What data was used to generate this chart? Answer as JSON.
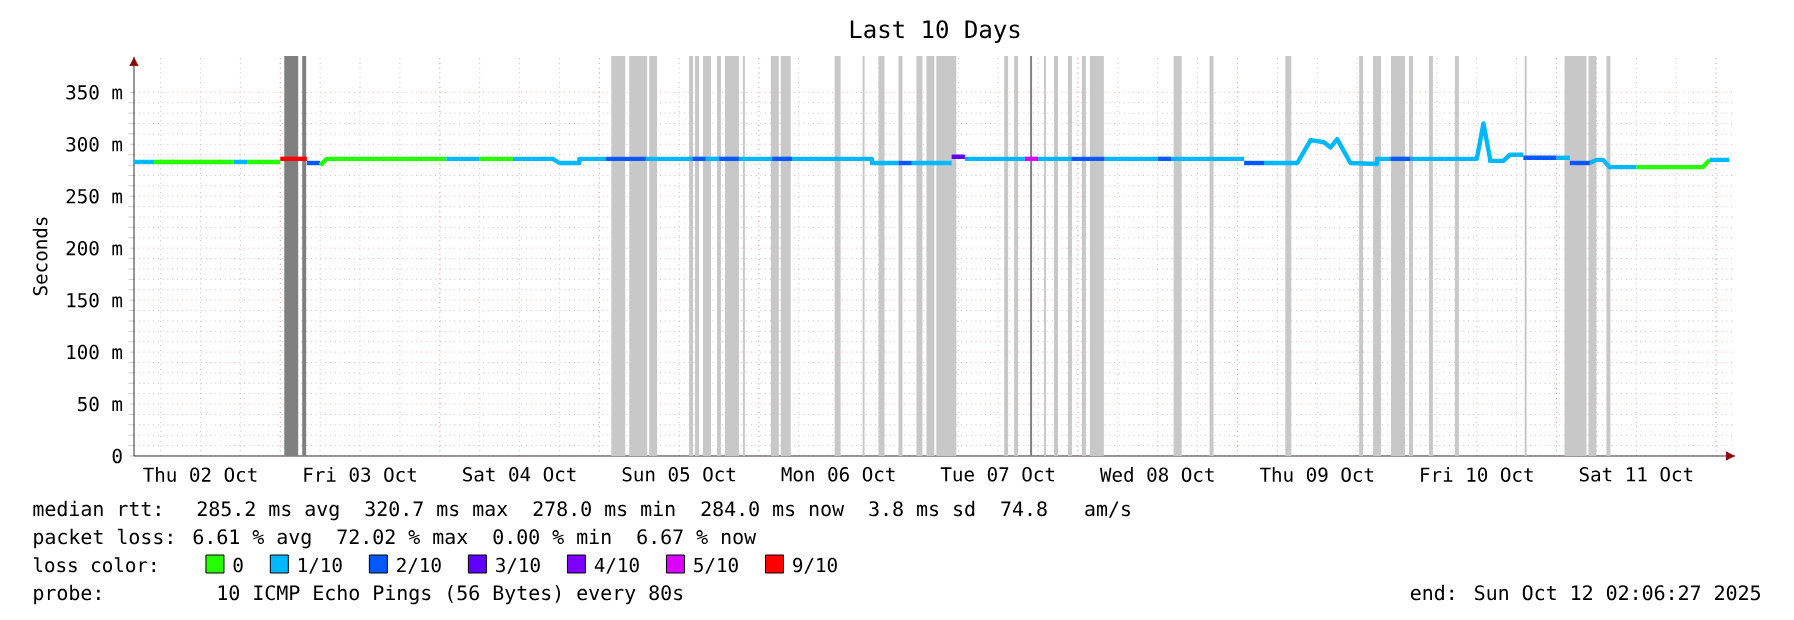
{
  "chart_data": {
    "type": "line",
    "title": "Last 10 Days",
    "ylabel": "Seconds",
    "legend_title": "loss color:",
    "legend": "bottom",
    "grid": true,
    "line_style": "solid",
    "xlim": [
      "2025-10-02T02:00",
      "2025-10-12T03:00"
    ],
    "xticks": [
      {
        "value": "2025-10-02T12:00",
        "label": "Thu 02 Oct"
      },
      {
        "value": "2025-10-03T12:00",
        "label": "Fri 03 Oct"
      },
      {
        "value": "2025-10-04T12:00",
        "label": "Sat 04 Oct"
      },
      {
        "value": "2025-10-05T12:00",
        "label": "Sun 05 Oct"
      },
      {
        "value": "2025-10-06T12:00",
        "label": "Mon 06 Oct"
      },
      {
        "value": "2025-10-07T12:00",
        "label": "Tue 07 Oct"
      },
      {
        "value": "2025-10-08T12:00",
        "label": "Wed 08 Oct"
      },
      {
        "value": "2025-10-09T12:00",
        "label": "Thu 09 Oct"
      },
      {
        "value": "2025-10-10T12:00",
        "label": "Fri 10 Oct"
      },
      {
        "value": "2025-10-11T12:00",
        "label": "Sat 11 Oct"
      },
      {
        "value": "2025-10-03T00:00",
        "label": null
      },
      {
        "value": "2025-10-04T00:00",
        "label": null
      },
      {
        "value": "2025-10-05T00:00",
        "label": null
      },
      {
        "value": "2025-10-06T00:00",
        "label": null
      },
      {
        "value": "2025-10-07T00:00",
        "label": null
      },
      {
        "value": "2025-10-08T00:00",
        "label": null
      },
      {
        "value": "2025-10-09T00:00",
        "label": null
      },
      {
        "value": "2025-10-10T00:00",
        "label": null
      },
      {
        "value": "2025-10-11T00:00",
        "label": null
      },
      {
        "value": "2025-10-12T00:00",
        "label": null
      }
    ],
    "ylim": [
      0,
      385
    ],
    "yticks": [
      0,
      {
        "value": 50,
        "label": "50 m"
      },
      {
        "value": 100,
        "label": "100 m"
      },
      {
        "value": 150,
        "label": "150 m"
      },
      {
        "value": 200,
        "label": "200 m"
      },
      {
        "value": 250,
        "label": "250 m"
      },
      {
        "value": 300,
        "label": "300 m"
      },
      {
        "value": 350,
        "label": "350 m"
      }
    ],
    "bands": [
      {
        "axis": "x",
        "from": "2025-10-03T00:36",
        "to": "2025-10-03T02:42",
        "color": "#808080"
      },
      {
        "axis": "x",
        "from": "2025-10-03T03:18",
        "to": "2025-10-03T03:54",
        "color": "#808080"
      },
      {
        "axis": "x",
        "from": "2025-10-05T01:48",
        "to": "2025-10-05T03:54",
        "color": "#c8c8c8"
      },
      {
        "axis": "x",
        "from": "2025-10-05T04:30",
        "to": "2025-10-05T07:12",
        "color": "#c8c8c8"
      },
      {
        "axis": "x",
        "from": "2025-10-05T07:30",
        "to": "2025-10-05T08:42",
        "color": "#c8c8c8"
      },
      {
        "axis": "x",
        "from": "2025-10-05T13:30",
        "to": "2025-10-05T14:06",
        "color": "#c8c8c8"
      },
      {
        "axis": "x",
        "from": "2025-10-05T14:24",
        "to": "2025-10-05T15:00",
        "color": "#c8c8c8"
      },
      {
        "axis": "x",
        "from": "2025-10-05T15:36",
        "to": "2025-10-05T16:48",
        "color": "#c8c8c8"
      },
      {
        "axis": "x",
        "from": "2025-10-05T17:42",
        "to": "2025-10-05T18:18",
        "color": "#c8c8c8"
      },
      {
        "axis": "x",
        "from": "2025-10-05T18:54",
        "to": "2025-10-05T21:00",
        "color": "#c8c8c8"
      },
      {
        "axis": "x",
        "from": "2025-10-05T21:36",
        "to": "2025-10-05T21:54",
        "color": "#c8c8c8"
      },
      {
        "axis": "x",
        "from": "2025-10-06T01:48",
        "to": "2025-10-06T03:00",
        "color": "#c8c8c8"
      },
      {
        "axis": "x",
        "from": "2025-10-06T03:18",
        "to": "2025-10-06T04:48",
        "color": "#c8c8c8"
      },
      {
        "axis": "x",
        "from": "2025-10-06T11:24",
        "to": "2025-10-06T12:18",
        "color": "#c8c8c8"
      },
      {
        "axis": "x",
        "from": "2025-10-06T15:36",
        "to": "2025-10-06T15:54",
        "color": "#c8c8c8"
      },
      {
        "axis": "x",
        "from": "2025-10-06T18:00",
        "to": "2025-10-06T18:54",
        "color": "#c8c8c8"
      },
      {
        "axis": "x",
        "from": "2025-10-06T21:00",
        "to": "2025-10-06T21:36",
        "color": "#c8c8c8"
      },
      {
        "axis": "x",
        "from": "2025-10-06T23:42",
        "to": "2025-10-07T00:36",
        "color": "#c8c8c8"
      },
      {
        "axis": "x",
        "from": "2025-10-07T01:12",
        "to": "2025-10-07T02:24",
        "color": "#c8c8c8"
      },
      {
        "axis": "x",
        "from": "2025-10-07T02:42",
        "to": "2025-10-07T05:42",
        "color": "#c8c8c8"
      },
      {
        "axis": "x",
        "from": "2025-10-07T12:54",
        "to": "2025-10-07T13:30",
        "color": "#c8c8c8"
      },
      {
        "axis": "x",
        "from": "2025-10-07T14:24",
        "to": "2025-10-07T15:00",
        "color": "#c8c8c8"
      },
      {
        "axis": "x",
        "from": "2025-10-07T16:48",
        "to": "2025-10-07T17:06",
        "color": "#808080"
      },
      {
        "axis": "x",
        "from": "2025-10-07T18:54",
        "to": "2025-10-07T19:12",
        "color": "#c8c8c8"
      },
      {
        "axis": "x",
        "from": "2025-10-07T20:24",
        "to": "2025-10-07T21:00",
        "color": "#c8c8c8"
      },
      {
        "axis": "x",
        "from": "2025-10-07T22:30",
        "to": "2025-10-07T23:06",
        "color": "#c8c8c8"
      },
      {
        "axis": "x",
        "from": "2025-10-08T00:36",
        "to": "2025-10-08T01:12",
        "color": "#c8c8c8"
      },
      {
        "axis": "x",
        "from": "2025-10-08T01:48",
        "to": "2025-10-08T03:54",
        "color": "#c8c8c8"
      },
      {
        "axis": "x",
        "from": "2025-10-08T14:24",
        "to": "2025-10-08T15:36",
        "color": "#c8c8c8"
      },
      {
        "axis": "x",
        "from": "2025-10-08T19:48",
        "to": "2025-10-08T20:24",
        "color": "#c8c8c8"
      },
      {
        "axis": "x",
        "from": "2025-10-09T07:12",
        "to": "2025-10-09T08:06",
        "color": "#c8c8c8"
      },
      {
        "axis": "x",
        "from": "2025-10-09T18:18",
        "to": "2025-10-09T18:54",
        "color": "#c8c8c8"
      },
      {
        "axis": "x",
        "from": "2025-10-09T20:24",
        "to": "2025-10-09T21:36",
        "color": "#c8c8c8"
      },
      {
        "axis": "x",
        "from": "2025-10-09T23:06",
        "to": "2025-10-10T01:12",
        "color": "#c8c8c8"
      },
      {
        "axis": "x",
        "from": "2025-10-10T01:48",
        "to": "2025-10-10T02:24",
        "color": "#c8c8c8"
      },
      {
        "axis": "x",
        "from": "2025-10-10T04:48",
        "to": "2025-10-10T05:24",
        "color": "#c8c8c8"
      },
      {
        "axis": "x",
        "from": "2025-10-10T08:42",
        "to": "2025-10-10T09:18",
        "color": "#c8c8c8"
      },
      {
        "axis": "x",
        "from": "2025-10-10T19:12",
        "to": "2025-10-10T19:30",
        "color": "#c8c8c8"
      },
      {
        "axis": "x",
        "from": "2025-10-11T01:12",
        "to": "2025-10-11T04:30",
        "color": "#c8c8c8"
      },
      {
        "axis": "x",
        "from": "2025-10-11T04:48",
        "to": "2025-10-11T06:00",
        "color": "#c8c8c8"
      },
      {
        "axis": "x",
        "from": "2025-10-11T07:30",
        "to": "2025-10-11T08:06",
        "color": "#c8c8c8"
      }
    ],
    "series": [
      {
        "name": "0",
        "color": "#26ff00",
        "x": [
          "2025-10-02T05:00",
          "2025-10-02T17:00"
        ],
        "values": [
          283,
          283
        ]
      },
      {
        "name": "1/10",
        "color": "#00b8ff",
        "x": [
          "2025-10-02T02:00",
          "2025-10-02T05:00"
        ],
        "values": [
          283,
          283
        ]
      },
      {
        "name": "2/10",
        "color": "#0059ff",
        "x": [
          "2025-10-03T04:00",
          "2025-10-03T06:00"
        ],
        "values": [
          282,
          282
        ]
      },
      {
        "name": "3/10",
        "color": "#5e00ff",
        "x": [
          "2025-10-07T05:00",
          "2025-10-07T07:00"
        ],
        "values": [
          288,
          288
        ]
      },
      {
        "name": "4/10",
        "color": "#7e00ff"
      },
      {
        "name": "5/10",
        "color": "#dd00ff",
        "x": [
          "2025-10-07T16:00",
          "2025-10-07T18:00"
        ],
        "values": [
          286,
          286
        ]
      },
      {
        "name": "9/10",
        "color": "#ff0000",
        "x": [
          "2025-10-03T00:00",
          "2025-10-03T04:00"
        ],
        "values": [
          286,
          286
        ]
      },
      {
        "color": "#26ff00",
        "x": [
          "2025-10-02T19:00",
          "2025-10-03T00:00"
        ],
        "values": [
          283,
          283
        ]
      },
      {
        "color": "#26ff00",
        "x": [
          "2025-10-03T06:00",
          "2025-10-03T07:00",
          "2025-10-04T01:00"
        ],
        "values": [
          280,
          286,
          286
        ]
      },
      {
        "color": "#26ff00",
        "x": [
          "2025-10-04T06:00",
          "2025-10-04T11:00"
        ],
        "values": [
          286,
          286
        ]
      },
      {
        "color": "#26ff00",
        "x": [
          "2025-10-11T12:00",
          "2025-10-11T22:00",
          "2025-10-11T23:00"
        ],
        "values": [
          278,
          278,
          285
        ]
      },
      {
        "color": "#00b8ff",
        "x": [
          "2025-10-02T17:00",
          "2025-10-02T19:00"
        ],
        "values": [
          283,
          283
        ]
      },
      {
        "color": "#00b8ff",
        "x": [
          "2025-10-04T01:00",
          "2025-10-04T06:00"
        ],
        "values": [
          286,
          286
        ]
      },
      {
        "color": "#00b8ff",
        "x": [
          "2025-10-04T11:00",
          "2025-10-04T17:00",
          "2025-10-04T18:00",
          "2025-10-04T21:00",
          "2025-10-04T21:00",
          "2025-10-05T01:00"
        ],
        "values": [
          286,
          286,
          282,
          282,
          286,
          286
        ]
      },
      {
        "color": "#00b8ff",
        "x": [
          "2025-10-05T07:00",
          "2025-10-05T14:00"
        ],
        "values": [
          286,
          286
        ]
      },
      {
        "color": "#00b8ff",
        "x": [
          "2025-10-05T16:00",
          "2025-10-05T18:00"
        ],
        "values": [
          286,
          286
        ]
      },
      {
        "color": "#00b8ff",
        "x": [
          "2025-10-05T21:00",
          "2025-10-06T02:00"
        ],
        "values": [
          286,
          286
        ]
      },
      {
        "color": "#00b8ff",
        "x": [
          "2025-10-06T05:00",
          "2025-10-06T17:00",
          "2025-10-06T17:00",
          "2025-10-06T21:00"
        ],
        "values": [
          286,
          286,
          282,
          282
        ]
      },
      {
        "color": "#00b8ff",
        "x": [
          "2025-10-06T23:00",
          "2025-10-07T05:00"
        ],
        "values": [
          282,
          282
        ]
      },
      {
        "color": "#00b8ff",
        "x": [
          "2025-10-07T07:00",
          "2025-10-07T16:00"
        ],
        "values": [
          286,
          286
        ]
      },
      {
        "color": "#00b8ff",
        "x": [
          "2025-10-07T18:00",
          "2025-10-07T23:00"
        ],
        "values": [
          286,
          286
        ]
      },
      {
        "color": "#00b8ff",
        "x": [
          "2025-10-08T04:00",
          "2025-10-08T12:00"
        ],
        "values": [
          286,
          286
        ]
      },
      {
        "color": "#00b8ff",
        "x": [
          "2025-10-08T14:00",
          "2025-10-09T01:00"
        ],
        "values": [
          286,
          286
        ]
      },
      {
        "color": "#00b8ff",
        "x": [
          "2025-10-09T04:00",
          "2025-10-09T09:00",
          "2025-10-09T11:00",
          "2025-10-09T13:00",
          "2025-10-09T14:00",
          "2025-10-09T15:00",
          "2025-10-09T17:00",
          "2025-10-09T21:00",
          "2025-10-09T21:00",
          "2025-10-09T23:00"
        ],
        "values": [
          282,
          282,
          304,
          302,
          297,
          305,
          282,
          281,
          286,
          286
        ]
      },
      {
        "color": "#00b8ff",
        "x": [
          "2025-10-10T02:00",
          "2025-10-10T12:00",
          "2025-10-10T13:00",
          "2025-10-10T14:00",
          "2025-10-10T14:00",
          "2025-10-10T16:00",
          "2025-10-10T17:00",
          "2025-10-10T19:00"
        ],
        "values": [
          286,
          286,
          320,
          286,
          284,
          284,
          290,
          290
        ]
      },
      {
        "color": "#00b8ff",
        "x": [
          "2025-10-11T00:00",
          "2025-10-11T02:00"
        ],
        "values": [
          287,
          287
        ]
      },
      {
        "color": "#00b8ff",
        "x": [
          "2025-10-11T05:00",
          "2025-10-11T06:00",
          "2025-10-11T07:00",
          "2025-10-11T08:00",
          "2025-10-11T12:00"
        ],
        "values": [
          282,
          285,
          285,
          278,
          278
        ]
      },
      {
        "color": "#00b8ff",
        "x": [
          "2025-10-11T23:00",
          "2025-10-12T02:00"
        ],
        "values": [
          285,
          285
        ]
      },
      {
        "color": "#0059ff",
        "x": [
          "2025-10-05T01:00",
          "2025-10-05T07:00"
        ],
        "values": [
          286,
          286
        ]
      },
      {
        "color": "#0059ff",
        "x": [
          "2025-10-05T14:00",
          "2025-10-05T16:00"
        ],
        "values": [
          286,
          286
        ]
      },
      {
        "color": "#0059ff",
        "x": [
          "2025-10-05T18:00",
          "2025-10-05T21:00"
        ],
        "values": [
          286,
          286
        ]
      },
      {
        "color": "#0059ff",
        "x": [
          "2025-10-06T02:00",
          "2025-10-06T05:00"
        ],
        "values": [
          286,
          286
        ]
      },
      {
        "color": "#0059ff",
        "x": [
          "2025-10-06T21:00",
          "2025-10-06T23:00"
        ],
        "values": [
          282,
          282
        ]
      },
      {
        "color": "#0059ff",
        "x": [
          "2025-10-07T23:00",
          "2025-10-08T04:00"
        ],
        "values": [
          286,
          286
        ]
      },
      {
        "color": "#0059ff",
        "x": [
          "2025-10-08T12:00",
          "2025-10-08T14:00"
        ],
        "values": [
          286,
          286
        ]
      },
      {
        "color": "#0059ff",
        "x": [
          "2025-10-09T01:00",
          "2025-10-09T04:00"
        ],
        "values": [
          282,
          282
        ]
      },
      {
        "color": "#0059ff",
        "x": [
          "2025-10-09T23:00",
          "2025-10-10T02:00"
        ],
        "values": [
          286,
          286
        ]
      },
      {
        "color": "#0059ff",
        "x": [
          "2025-10-10T19:00",
          "2025-10-11T00:00"
        ],
        "values": [
          287,
          287
        ]
      },
      {
        "color": "#0059ff",
        "x": [
          "2025-10-11T02:00",
          "2025-10-11T05:00"
        ],
        "values": [
          282,
          282
        ]
      }
    ],
    "annotations": [
      "median rtt:  285.2 ms avg  320.7 ms max  278.0 ms min  284.0 ms now  3.8 ms sd  74.8   am/s",
      "packet loss: 6.61 % avg  72.02 % max  0.00 % min  6.67 % now",
      "probe:       10 ICMP Echo Pings (56 Bytes) every 80s",
      "end: Sun Oct 12 02:06:27 2025"
    ]
  }
}
